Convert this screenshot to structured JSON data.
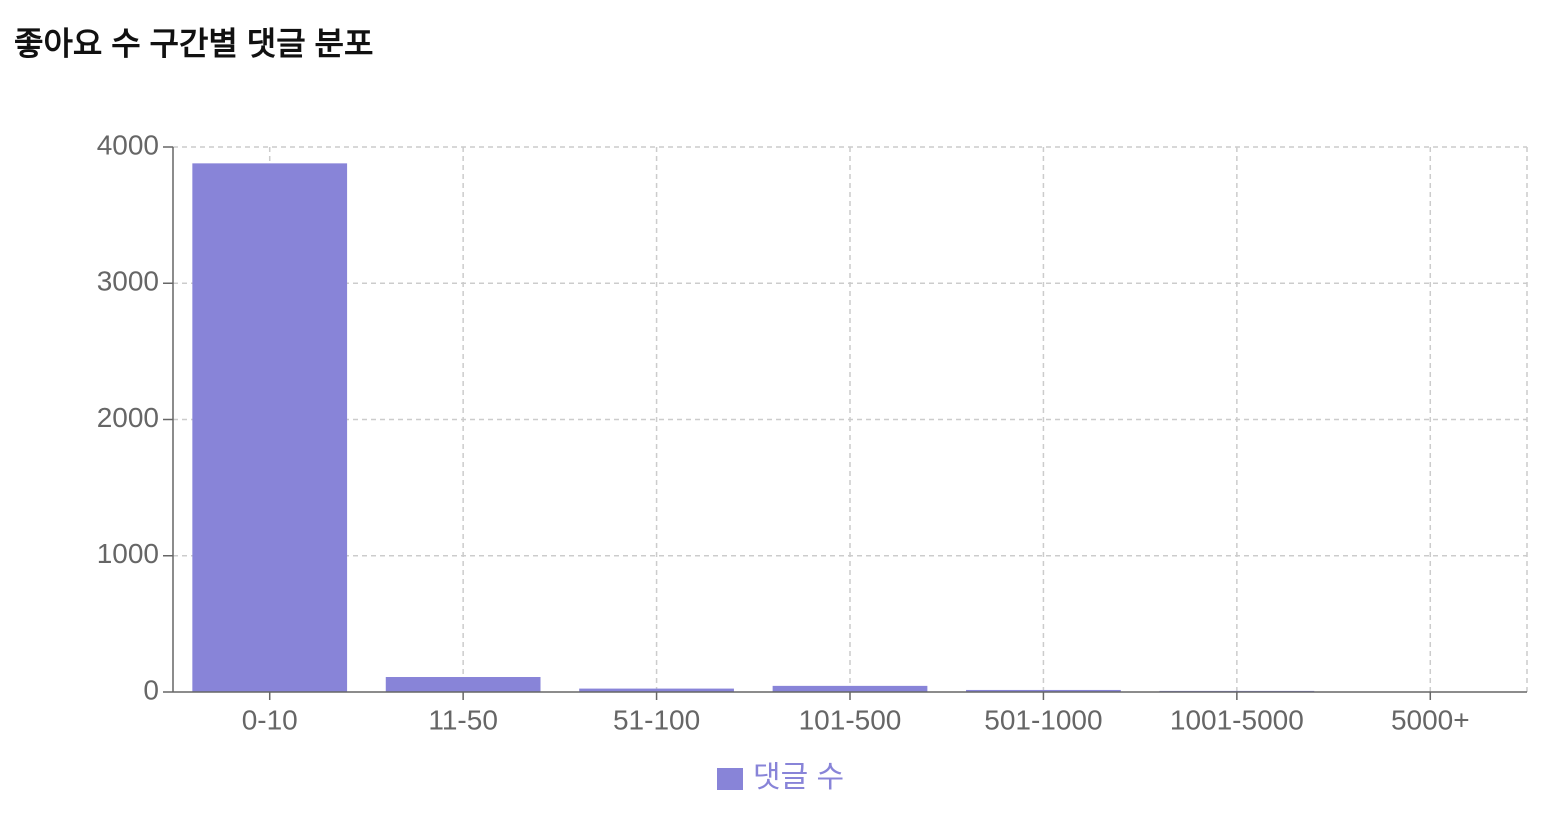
{
  "chart_data": {
    "type": "bar",
    "title": "좋아요 수 구간별 댓글 분포",
    "categories": [
      "0-10",
      "11-50",
      "51-100",
      "101-500",
      "501-1000",
      "1001-5000",
      "5000+"
    ],
    "series": [
      {
        "name": "댓글 수",
        "color": "#8884d8",
        "values": [
          3880,
          110,
          25,
          45,
          15,
          8,
          2
        ]
      }
    ],
    "ylim": [
      0,
      4000
    ],
    "yticks": [
      0,
      1000,
      2000,
      3000,
      4000
    ],
    "grid": true,
    "legend": "bottom"
  }
}
